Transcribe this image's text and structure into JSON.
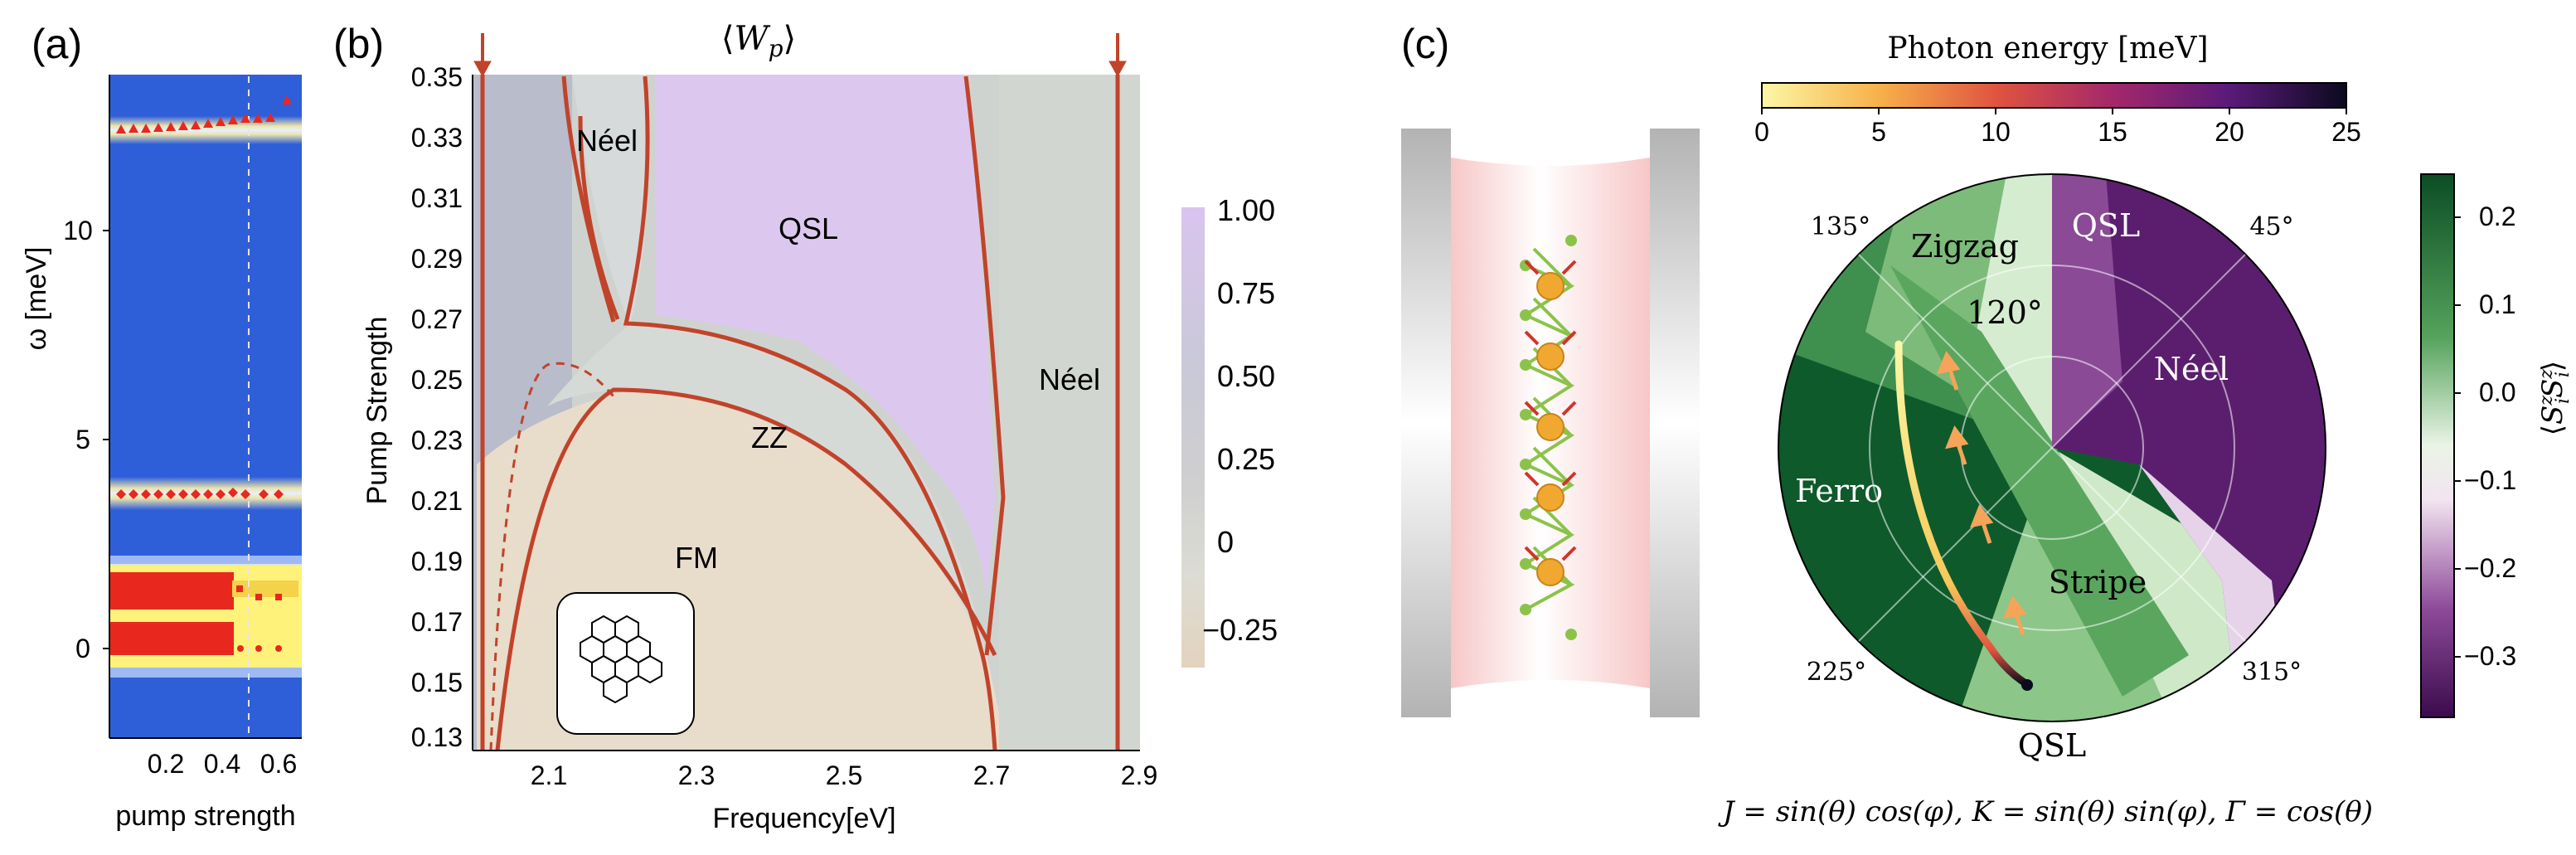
{
  "panels": {
    "a": {
      "label": "(a)",
      "ylabel": "ω [meV]",
      "xlabel": "pump strength",
      "yticks": [
        "0",
        "5",
        "10"
      ],
      "xticks": [
        "0.2",
        "0.4",
        "0.6"
      ]
    },
    "b": {
      "label": "(b)",
      "title": "⟨W_p⟩",
      "xlabel": "Frequency[eV]",
      "ylabel": "Pump Strength",
      "yticks": [
        "0.35",
        "0.33",
        "0.31",
        "0.29",
        "0.27",
        "0.25",
        "0.23",
        "0.21",
        "0.19",
        "0.17",
        "0.15",
        "0.13"
      ],
      "xticks": [
        "2.1",
        "2.3",
        "2.5",
        "2.7",
        "2.9"
      ],
      "regions": [
        "Néel",
        "QSL",
        "Néel",
        "ZZ",
        "FM"
      ],
      "colorbar_ticks": [
        "1.00",
        "0.75",
        "0.50",
        "0.25",
        "0",
        "−0.25"
      ]
    },
    "c": {
      "label": "(c)",
      "colorbar_top_title": "Photon energy [meV]",
      "colorbar_top_ticks": [
        "0",
        "5",
        "10",
        "15",
        "20",
        "25"
      ],
      "colorbar_right_ticks": [
        "0.2",
        "0.1",
        "0.0",
        "−0.1",
        "−0.2",
        "−0.3"
      ],
      "colorbar_right_label": "⟨S_i^z S_i^z⟩",
      "angle_labels": [
        "135°",
        "45°",
        "225°",
        "315°",
        "120°"
      ],
      "regions": [
        "QSL",
        "Zigzag",
        "Néel",
        "Ferro",
        "Stripe",
        "QSL"
      ],
      "formula": "J = sin(θ) cos(φ), K = sin(θ) sin(φ), Γ = cos(θ)"
    }
  },
  "colors": {
    "phase_boundary": "#c1432a",
    "marker_red": "#e8281e",
    "heatmap_blue": "#2f5fd8",
    "qsl_purple": "#d9c4ee",
    "fm_beige": "#e8dccb"
  }
}
